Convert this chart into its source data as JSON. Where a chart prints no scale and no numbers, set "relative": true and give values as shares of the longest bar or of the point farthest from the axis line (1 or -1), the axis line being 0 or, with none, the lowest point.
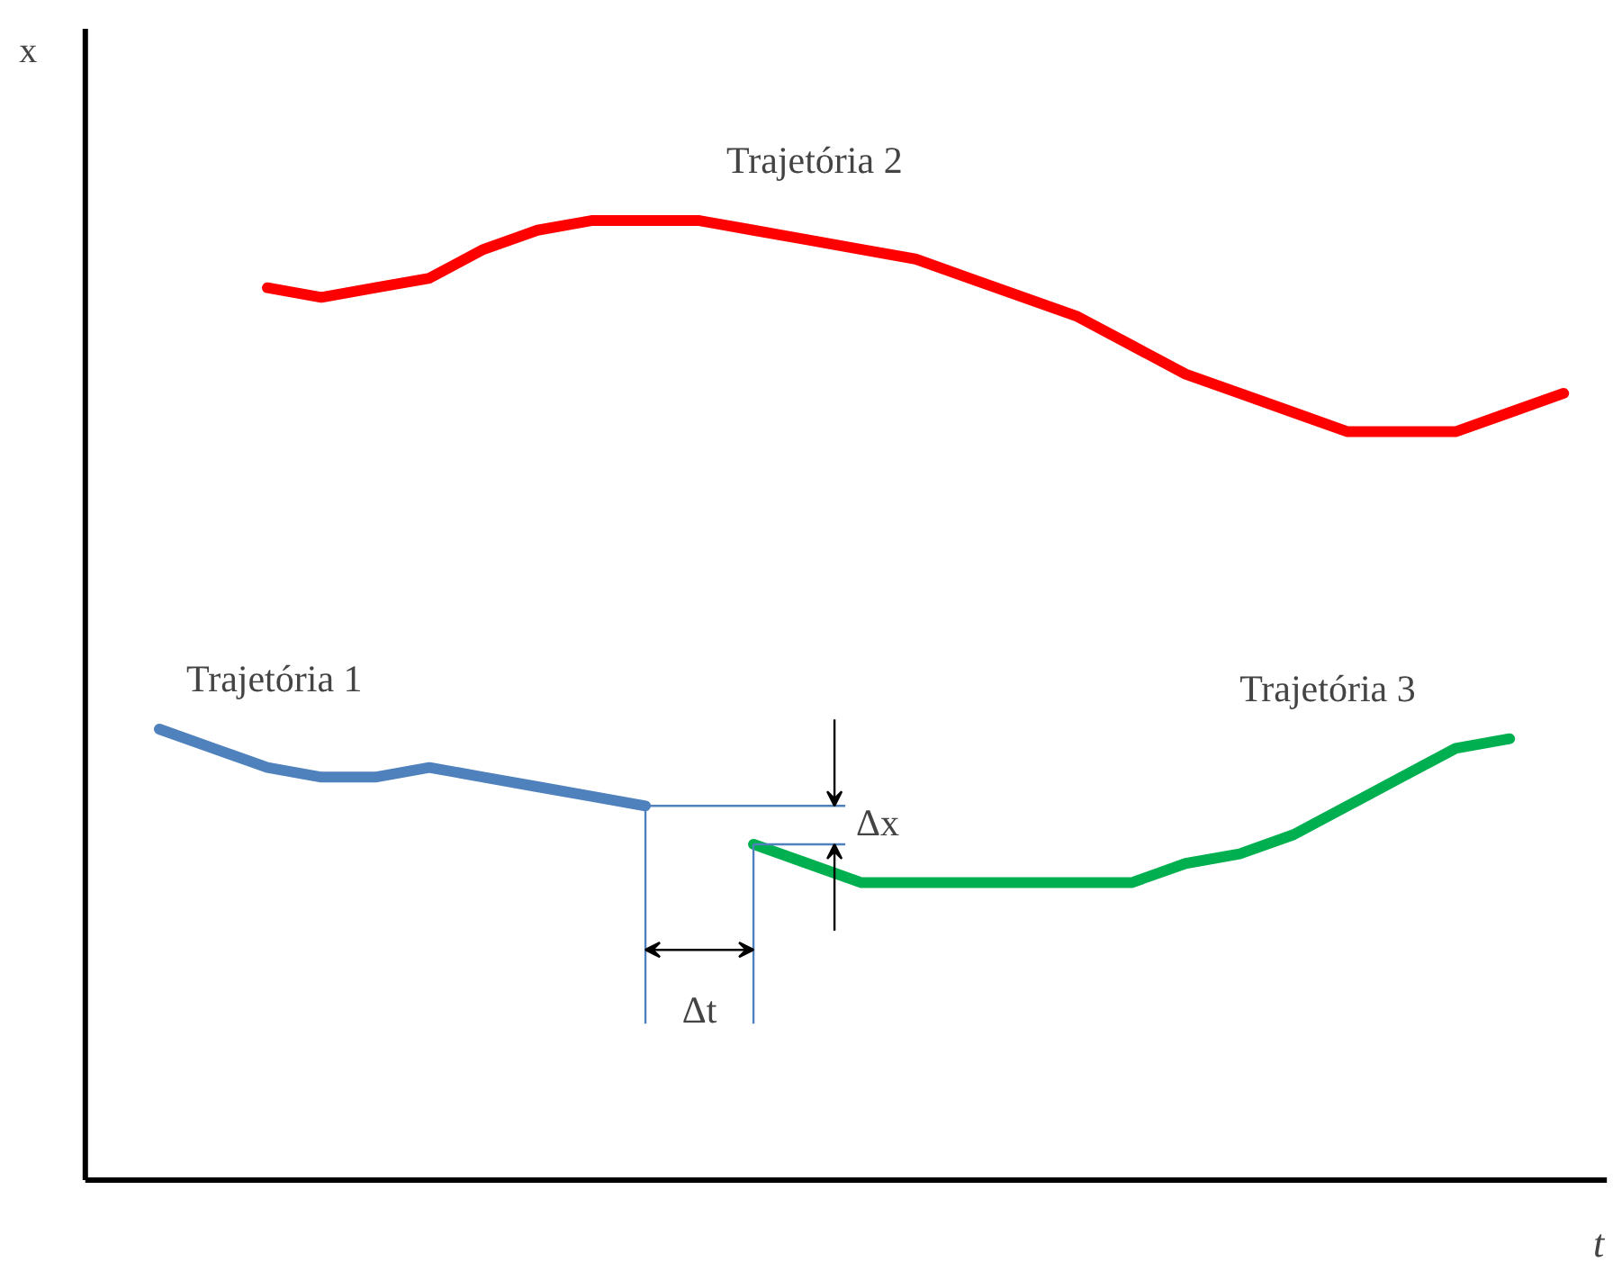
{
  "chart_data": {
    "type": "line",
    "relative": true,
    "xlabel": "t",
    "ylabel": "x",
    "categories": [
      null,
      null,
      null,
      null,
      null,
      null,
      null,
      null,
      null,
      null,
      null,
      null,
      null,
      null,
      null,
      null,
      null,
      null,
      null,
      null,
      null,
      null,
      null,
      null,
      null,
      null,
      null,
      null
    ],
    "series": [
      {
        "name": "Trajetória 1",
        "color": "#4f81bd",
        "values": [
          null,
          0.47,
          0.45,
          0.43,
          0.42,
          0.42,
          0.43,
          0.42,
          0.41,
          0.4,
          0.39,
          null,
          null,
          null,
          null,
          null,
          null,
          null,
          null,
          null,
          null,
          null,
          null,
          null,
          null,
          null,
          null,
          null
        ]
      },
      {
        "name": "Trajetória 2",
        "color": "#ff0000",
        "values": [
          null,
          null,
          null,
          0.93,
          0.92,
          0.93,
          0.94,
          0.97,
          0.99,
          1,
          1,
          1,
          0.99,
          0.98,
          0.97,
          0.96,
          0.94,
          0.92,
          0.9,
          0.87,
          0.84,
          0.82,
          0.8,
          0.78,
          0.78,
          0.78,
          0.8,
          0.82
        ]
      },
      {
        "name": "Trajetória 3",
        "color": "#00b050",
        "values": [
          null,
          null,
          null,
          null,
          null,
          null,
          null,
          null,
          null,
          null,
          null,
          null,
          0.35,
          0.33,
          0.31,
          0.31,
          0.31,
          0.31,
          0.31,
          0.31,
          0.33,
          0.34,
          0.36,
          0.39,
          0.42,
          0.45,
          0.46,
          null
        ]
      }
    ],
    "annotations": [
      "Δx",
      "Δt"
    ],
    "grid": false,
    "marker": "none",
    "line_style": "solid"
  }
}
